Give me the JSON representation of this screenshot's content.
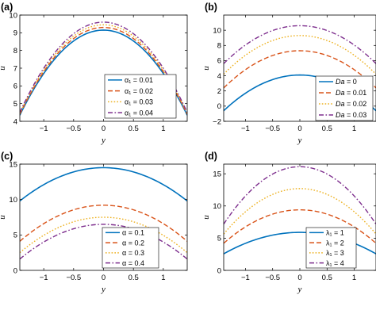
{
  "chart_data": [
    {
      "type": "line",
      "panel_label": "(a)",
      "xlabel": "y",
      "ylabel": "u",
      "xlim": [
        -1.4,
        1.4
      ],
      "ylim": [
        4,
        10
      ],
      "xticks": [
        -1,
        -0.5,
        0,
        0.5,
        1
      ],
      "xtick_labels": [
        "−1",
        "−0.5",
        "0",
        "0.5",
        "1"
      ],
      "yticks": [
        4,
        5,
        6,
        7,
        8,
        9,
        10
      ],
      "ytick_labels": [
        "4",
        "5",
        "6",
        "7",
        "8",
        "9",
        "10"
      ],
      "legend_position": "bottom-center",
      "series": [
        {
          "name": "α₁ = 0.01",
          "style": "solid",
          "color": "#0072BD",
          "center": 9.15,
          "curvature": 2.45
        },
        {
          "name": "α₁ = 0.02",
          "style": "dashed",
          "color": "#D95319",
          "center": 9.3,
          "curvature": 2.5
        },
        {
          "name": "α₁ = 0.03",
          "style": "dotted",
          "color": "#EDB120",
          "center": 9.45,
          "curvature": 2.55
        },
        {
          "name": "α₁ = 0.04",
          "style": "dashdot",
          "color": "#7E2F8E",
          "center": 9.6,
          "curvature": 2.6
        }
      ]
    },
    {
      "type": "line",
      "panel_label": "(b)",
      "xlabel": "y",
      "ylabel": "u",
      "xlim": [
        -1.4,
        1.4
      ],
      "ylim": [
        -2,
        12
      ],
      "xticks": [
        -1,
        -0.5,
        0,
        0.5,
        1
      ],
      "xtick_labels": [
        "−1",
        "−0.5",
        "0",
        "0.5",
        "1"
      ],
      "yticks": [
        -2,
        0,
        2,
        4,
        6,
        8,
        10
      ],
      "ytick_labels": [
        "−2",
        "0",
        "2",
        "4",
        "6",
        "8",
        "10"
      ],
      "legend_position": "bottom-center",
      "series": [
        {
          "name": "Da = 0",
          "name_var": "Da",
          "name_value": " = 0",
          "style": "solid",
          "color": "#0072BD",
          "center": 4.1,
          "curvature": 2.4
        },
        {
          "name": "Da = 0.01",
          "name_var": "Da",
          "name_value": " = 0.01",
          "style": "dashed",
          "color": "#D95319",
          "center": 7.3,
          "curvature": 2.5
        },
        {
          "name": "Da = 0.02",
          "name_var": "Da",
          "name_value": " = 0.02",
          "style": "dotted",
          "color": "#EDB120",
          "center": 9.3,
          "curvature": 2.6
        },
        {
          "name": "Da = 0.03",
          "name_var": "Da",
          "name_value": " = 0.03",
          "style": "dashdot",
          "color": "#7E2F8E",
          "center": 10.6,
          "curvature": 2.55
        }
      ]
    },
    {
      "type": "line",
      "panel_label": "(c)",
      "xlabel": "y",
      "ylabel": "u",
      "xlim": [
        -1.4,
        1.4
      ],
      "ylim": [
        0,
        15
      ],
      "xticks": [
        -1,
        -0.5,
        0,
        0.5,
        1
      ],
      "xtick_labels": [
        "−1",
        "−0.5",
        "0",
        "0.5",
        "1"
      ],
      "yticks": [
        0,
        5,
        10,
        15
      ],
      "ytick_labels": [
        "0",
        "5",
        "10",
        "15"
      ],
      "legend_position": "bottom-center",
      "series": [
        {
          "name": "α = 0.1",
          "style": "solid",
          "color": "#0072BD",
          "center": 14.5,
          "curvature": 2.4
        },
        {
          "name": "α = 0.2",
          "style": "dashed",
          "color": "#D95319",
          "center": 9.2,
          "curvature": 2.6
        },
        {
          "name": "α = 0.3",
          "style": "dotted",
          "color": "#EDB120",
          "center": 7.5,
          "curvature": 2.55
        },
        {
          "name": "α = 0.4",
          "style": "dashdot",
          "color": "#7E2F8E",
          "center": 6.5,
          "curvature": 2.5
        }
      ]
    },
    {
      "type": "line",
      "panel_label": "(d)",
      "xlabel": "y",
      "ylabel": "u",
      "xlim": [
        -1.4,
        1.4
      ],
      "ylim": [
        0,
        16.5
      ],
      "xticks": [
        -1,
        -0.5,
        0,
        0.5,
        1
      ],
      "xtick_labels": [
        "−1",
        "−0.5",
        "0",
        "0.5",
        "1"
      ],
      "yticks": [
        0,
        5,
        10,
        15
      ],
      "ytick_labels": [
        "0",
        "5",
        "10",
        "15"
      ],
      "legend_position": "bottom-right",
      "series": [
        {
          "name": "λ₁ = 1",
          "style": "solid",
          "color": "#0072BD",
          "center": 5.9,
          "curvature": 1.7
        },
        {
          "name": "λ₁ = 2",
          "style": "dashed",
          "color": "#D95319",
          "center": 9.4,
          "curvature": 2.65
        },
        {
          "name": "λ₁ = 3",
          "style": "dotted",
          "color": "#EDB120",
          "center": 12.7,
          "curvature": 3.6
        },
        {
          "name": "λ₁ = 4",
          "style": "dashdot",
          "color": "#7E2F8E",
          "center": 16.1,
          "curvature": 4.55
        }
      ]
    }
  ]
}
